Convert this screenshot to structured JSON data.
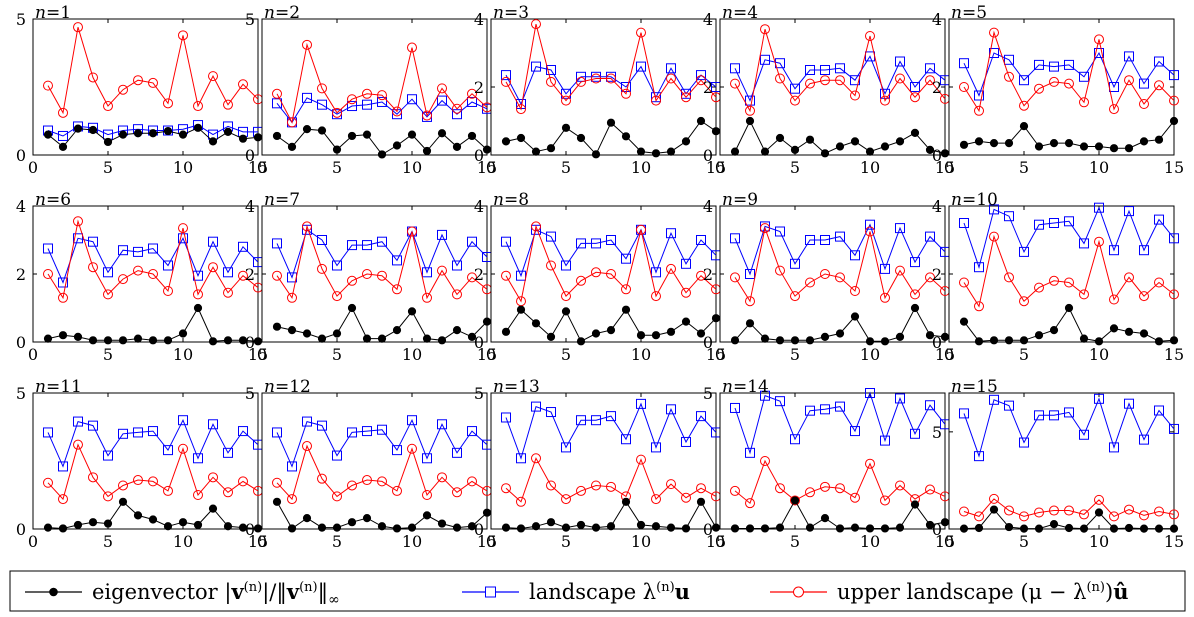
{
  "chart_data": {
    "type": "line",
    "layout": "grid 3x5 of small-multiple line charts",
    "x": [
      1,
      2,
      3,
      4,
      5,
      6,
      7,
      8,
      9,
      10,
      11,
      12,
      13,
      14,
      15
    ],
    "xticks": [
      0,
      5,
      10,
      15
    ],
    "xlim": [
      0,
      15
    ],
    "series_styles": [
      {
        "key": "eigenvector",
        "color": "#000000",
        "marker": "filled-circle"
      },
      {
        "key": "landscape",
        "color": "#0000ff",
        "marker": "square"
      },
      {
        "key": "upper",
        "color": "#ff0000",
        "marker": "circle"
      }
    ],
    "panels": [
      {
        "title": "n=1",
        "ylim": [
          0,
          5
        ],
        "yticks": [
          0,
          5
        ],
        "eigenvector": [
          0.75,
          0.3,
          0.97,
          0.92,
          0.48,
          0.75,
          0.8,
          0.8,
          0.88,
          0.75,
          1.0,
          0.5,
          0.85,
          0.6,
          0.65
        ],
        "landscape": [
          0.9,
          0.7,
          1.05,
          1.0,
          0.75,
          0.9,
          0.95,
          0.9,
          0.9,
          0.95,
          1.1,
          0.75,
          1.05,
          0.85,
          0.85
        ],
        "upper": [
          2.55,
          1.55,
          4.7,
          2.85,
          1.8,
          2.4,
          2.75,
          2.65,
          1.9,
          4.4,
          1.8,
          2.9,
          1.85,
          2.6,
          2.05
        ]
      },
      {
        "title": "n=2",
        "ylim": [
          0,
          5
        ],
        "yticks": [
          0,
          5
        ],
        "eigenvector": [
          0.7,
          0.3,
          0.95,
          0.9,
          0.2,
          0.7,
          0.75,
          0.02,
          0.35,
          0.75,
          0.15,
          0.8,
          0.3,
          0.7,
          0.2
        ],
        "landscape": [
          1.9,
          1.2,
          2.1,
          1.85,
          1.5,
          1.8,
          1.85,
          1.95,
          1.5,
          2.05,
          1.4,
          2.0,
          1.5,
          1.95,
          1.7
        ],
        "upper": [
          2.25,
          1.2,
          4.05,
          2.45,
          1.55,
          2.05,
          2.25,
          2.2,
          1.6,
          3.95,
          1.45,
          2.45,
          1.7,
          2.25,
          1.75
        ]
      },
      {
        "title": "n=3",
        "ylim": [
          0,
          4
        ],
        "yticks": [
          0,
          2,
          4
        ],
        "eigenvector": [
          0.4,
          0.5,
          0.1,
          0.2,
          0.8,
          0.5,
          0.02,
          0.95,
          0.55,
          0.1,
          0.05,
          0.1,
          0.4,
          1.0,
          0.7
        ],
        "landscape": [
          2.35,
          1.5,
          2.6,
          2.5,
          1.8,
          2.3,
          2.3,
          2.3,
          2.0,
          2.6,
          1.7,
          2.55,
          1.8,
          2.35,
          2.0
        ],
        "upper": [
          2.15,
          1.35,
          3.85,
          2.15,
          1.6,
          2.15,
          2.25,
          2.25,
          1.8,
          3.6,
          1.6,
          2.25,
          1.7,
          2.2,
          1.7
        ]
      },
      {
        "title": "n=4",
        "ylim": [
          0,
          4
        ],
        "yticks": [
          0,
          2,
          4
        ],
        "eigenvector": [
          0.1,
          1.0,
          0.1,
          0.5,
          0.15,
          0.45,
          0.05,
          0.25,
          0.4,
          0.1,
          0.25,
          0.4,
          0.65,
          0.15,
          0.05
        ],
        "landscape": [
          2.55,
          1.6,
          2.8,
          2.7,
          1.95,
          2.5,
          2.5,
          2.55,
          2.2,
          2.9,
          1.8,
          2.75,
          2.0,
          2.55,
          2.2
        ],
        "upper": [
          2.1,
          1.3,
          3.7,
          2.25,
          1.6,
          2.1,
          2.2,
          2.2,
          1.75,
          3.5,
          1.6,
          2.25,
          1.7,
          2.2,
          1.65
        ]
      },
      {
        "title": "n=5",
        "ylim": [
          0,
          4
        ],
        "yticks": [
          0,
          2,
          4
        ],
        "eigenvector": [
          0.3,
          0.4,
          0.35,
          0.35,
          0.85,
          0.25,
          0.35,
          0.35,
          0.25,
          0.25,
          0.2,
          0.2,
          0.4,
          0.45,
          1.0
        ],
        "landscape": [
          2.7,
          1.75,
          3.0,
          2.8,
          2.2,
          2.65,
          2.6,
          2.65,
          2.3,
          3.0,
          2.0,
          2.9,
          2.1,
          2.75,
          2.35
        ],
        "upper": [
          2.0,
          1.3,
          3.6,
          2.3,
          1.45,
          1.95,
          2.15,
          2.1,
          1.55,
          3.4,
          1.35,
          2.2,
          1.5,
          2.05,
          1.6
        ]
      },
      {
        "title": "n=6",
        "ylim": [
          0,
          4
        ],
        "yticks": [
          0,
          2,
          4
        ],
        "eigenvector": [
          0.1,
          0.2,
          0.15,
          0.05,
          0.05,
          0.05,
          0.1,
          0.05,
          0.05,
          0.25,
          1.0,
          0.02,
          0.05,
          0.05,
          0.02
        ],
        "landscape": [
          2.75,
          1.75,
          3.05,
          2.95,
          2.05,
          2.7,
          2.65,
          2.75,
          2.25,
          3.05,
          1.95,
          2.95,
          2.05,
          2.8,
          2.35
        ],
        "upper": [
          2.0,
          1.3,
          3.55,
          2.2,
          1.4,
          1.85,
          2.1,
          2.0,
          1.5,
          3.35,
          1.4,
          2.2,
          1.45,
          1.95,
          1.6
        ]
      },
      {
        "title": "n=7",
        "ylim": [
          0,
          4
        ],
        "yticks": [
          0,
          2,
          4
        ],
        "eigenvector": [
          0.45,
          0.35,
          0.25,
          0.1,
          0.25,
          1.0,
          0.1,
          0.1,
          0.35,
          0.9,
          0.1,
          0.05,
          0.35,
          0.15,
          0.6
        ],
        "landscape": [
          2.9,
          1.9,
          3.3,
          3.0,
          2.25,
          2.85,
          2.85,
          2.95,
          2.4,
          3.25,
          2.05,
          3.15,
          2.25,
          2.95,
          2.5
        ],
        "upper": [
          1.95,
          1.3,
          3.4,
          2.15,
          1.35,
          1.8,
          2.0,
          1.95,
          1.55,
          3.25,
          1.3,
          2.1,
          1.4,
          1.9,
          1.55
        ]
      },
      {
        "title": "n=8",
        "ylim": [
          0,
          4
        ],
        "yticks": [
          0,
          2,
          4
        ],
        "eigenvector": [
          0.3,
          0.95,
          0.55,
          0.15,
          0.9,
          0.02,
          0.25,
          0.35,
          0.95,
          0.2,
          0.2,
          0.3,
          0.6,
          0.25,
          0.7
        ],
        "landscape": [
          2.95,
          1.95,
          3.3,
          3.1,
          2.25,
          2.9,
          2.9,
          3.0,
          2.45,
          3.3,
          2.05,
          3.2,
          2.3,
          3.0,
          2.55
        ],
        "upper": [
          1.95,
          1.2,
          3.4,
          2.25,
          1.35,
          1.8,
          2.05,
          2.0,
          1.55,
          3.3,
          1.35,
          2.15,
          1.45,
          1.95,
          1.55
        ]
      },
      {
        "title": "n=9",
        "ylim": [
          0,
          4
        ],
        "yticks": [
          0,
          2,
          4
        ],
        "eigenvector": [
          0.05,
          0.55,
          0.1,
          0.05,
          0.05,
          0.05,
          0.15,
          0.25,
          0.75,
          0.02,
          0.02,
          0.15,
          1.0,
          0.2,
          0.15
        ],
        "landscape": [
          3.05,
          2.0,
          3.4,
          3.25,
          2.3,
          3.0,
          3.0,
          3.1,
          2.55,
          3.45,
          2.15,
          3.35,
          2.35,
          3.1,
          2.65
        ],
        "upper": [
          1.9,
          1.2,
          3.35,
          2.1,
          1.35,
          1.75,
          2.0,
          1.9,
          1.5,
          3.25,
          1.3,
          2.1,
          1.4,
          1.9,
          1.5
        ]
      },
      {
        "title": "n=10",
        "ylim": [
          0,
          4
        ],
        "yticks": [
          0,
          2,
          4
        ],
        "eigenvector": [
          0.6,
          0.02,
          0.05,
          0.05,
          0.05,
          0.2,
          0.35,
          1.0,
          0.1,
          0.02,
          0.4,
          0.3,
          0.25,
          0.02,
          0.05
        ],
        "landscape": [
          3.5,
          2.2,
          3.9,
          3.7,
          2.65,
          3.45,
          3.5,
          3.55,
          2.9,
          3.95,
          2.7,
          3.85,
          2.7,
          3.6,
          3.05
        ],
        "upper": [
          1.75,
          1.05,
          3.1,
          1.9,
          1.2,
          1.6,
          1.8,
          1.75,
          1.4,
          2.95,
          1.25,
          1.9,
          1.35,
          1.75,
          1.4
        ]
      },
      {
        "title": "n=11",
        "ylim": [
          0,
          5
        ],
        "yticks": [
          0,
          5
        ],
        "eigenvector": [
          0.05,
          0.02,
          0.15,
          0.25,
          0.2,
          1.0,
          0.5,
          0.35,
          0.1,
          0.25,
          0.15,
          0.75,
          0.1,
          0.05,
          0.02
        ],
        "landscape": [
          3.55,
          2.3,
          3.95,
          3.8,
          2.7,
          3.5,
          3.55,
          3.6,
          2.9,
          4.0,
          2.6,
          3.85,
          2.8,
          3.6,
          3.1
        ],
        "upper": [
          1.7,
          1.1,
          3.1,
          1.9,
          1.2,
          1.6,
          1.8,
          1.75,
          1.4,
          2.95,
          1.25,
          1.9,
          1.35,
          1.75,
          1.4
        ]
      },
      {
        "title": "n=12",
        "ylim": [
          0,
          5
        ],
        "yticks": [
          0,
          5
        ],
        "eigenvector": [
          1.0,
          0.02,
          0.4,
          0.05,
          0.05,
          0.25,
          0.4,
          0.1,
          0.02,
          0.05,
          0.5,
          0.2,
          0.05,
          0.1,
          0.6
        ],
        "landscape": [
          3.55,
          2.3,
          3.95,
          3.8,
          2.7,
          3.55,
          3.6,
          3.65,
          2.9,
          4.0,
          2.6,
          3.85,
          2.8,
          3.6,
          3.1
        ],
        "upper": [
          1.7,
          1.1,
          3.05,
          1.85,
          1.2,
          1.6,
          1.8,
          1.75,
          1.4,
          2.95,
          1.25,
          1.9,
          1.35,
          1.75,
          1.4
        ]
      },
      {
        "title": "n=13",
        "ylim": [
          0,
          5
        ],
        "yticks": [
          0,
          5
        ],
        "eigenvector": [
          0.05,
          0.02,
          0.1,
          0.25,
          0.05,
          0.15,
          0.05,
          0.1,
          1.0,
          0.15,
          0.1,
          0.05,
          0.02,
          1.0,
          0.05
        ],
        "landscape": [
          4.1,
          2.6,
          4.5,
          4.3,
          3.0,
          4.0,
          4.0,
          4.15,
          3.3,
          4.6,
          3.0,
          4.4,
          3.2,
          4.15,
          3.55
        ],
        "upper": [
          1.5,
          1.0,
          2.6,
          1.6,
          1.1,
          1.4,
          1.6,
          1.55,
          1.2,
          2.55,
          1.1,
          1.65,
          1.15,
          1.5,
          1.2
        ]
      },
      {
        "title": "n=14",
        "ylim": [
          0,
          5
        ],
        "yticks": [
          0,
          5
        ],
        "eigenvector": [
          0.02,
          0.02,
          0.02,
          0.05,
          1.05,
          0.05,
          0.4,
          0.02,
          0.05,
          0.02,
          0.02,
          0.05,
          0.9,
          0.15,
          0.25
        ],
        "landscape": [
          4.45,
          2.8,
          4.9,
          4.7,
          3.3,
          4.35,
          4.4,
          4.5,
          3.6,
          5.0,
          3.25,
          4.8,
          3.5,
          4.55,
          3.85
        ],
        "upper": [
          1.4,
          0.95,
          2.5,
          1.5,
          1.05,
          1.35,
          1.55,
          1.5,
          1.15,
          2.4,
          1.05,
          1.6,
          1.1,
          1.45,
          1.2
        ]
      },
      {
        "title": "n=15",
        "ylim": [
          0,
          7
        ],
        "yticks": [
          0,
          5
        ],
        "eigenvector": [
          0.02,
          0.05,
          1.0,
          0.1,
          0.02,
          0.02,
          0.25,
          0.05,
          0.02,
          0.85,
          0.02,
          0.05,
          0.02,
          0.02,
          0.02
        ],
        "landscape": [
          5.95,
          3.75,
          6.65,
          6.35,
          4.45,
          5.85,
          5.85,
          6.0,
          4.85,
          6.7,
          4.2,
          6.45,
          4.6,
          6.1,
          5.15
        ],
        "upper": [
          0.9,
          0.65,
          1.55,
          0.95,
          0.65,
          0.85,
          0.95,
          0.95,
          0.75,
          1.5,
          0.65,
          1.0,
          0.7,
          0.9,
          0.75
        ]
      }
    ]
  },
  "legend": {
    "entries": [
      {
        "key": "eigenvector",
        "text": "eigenvector |v(n)|/‖v(n)‖∞"
      },
      {
        "key": "landscape",
        "text": "landscape λ(n)u"
      },
      {
        "key": "upper",
        "text": "upper landscape (μ − λ(n))û"
      }
    ]
  }
}
